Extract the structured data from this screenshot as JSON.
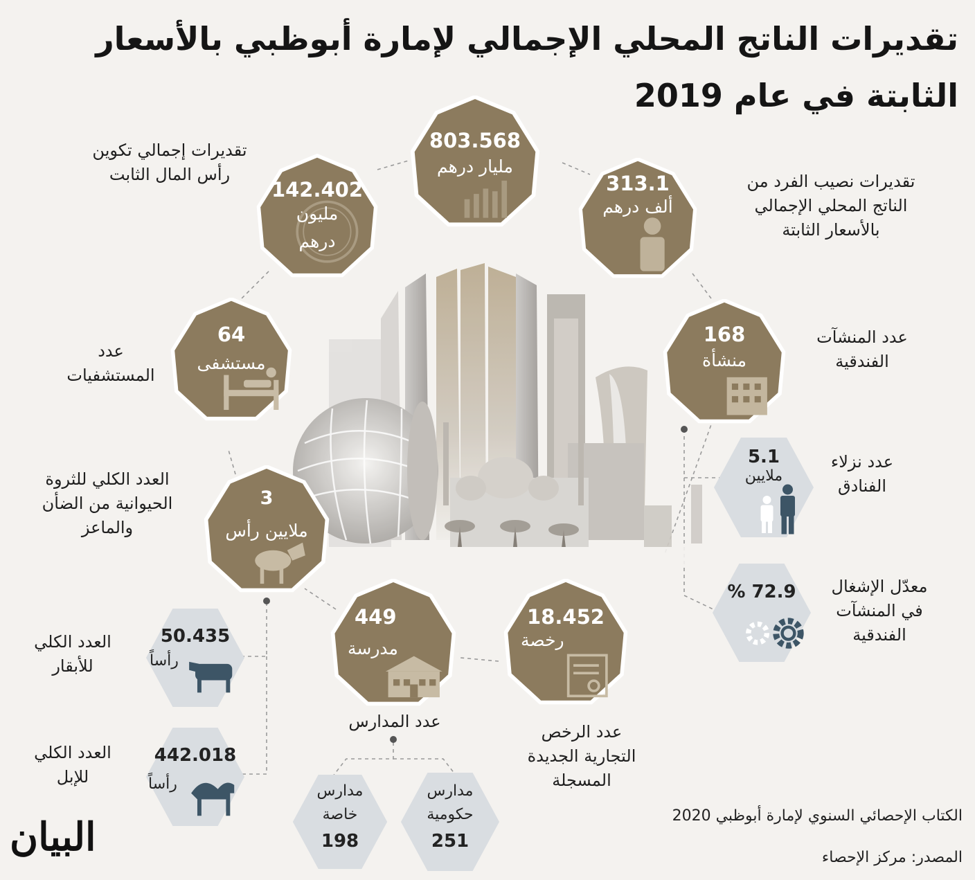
{
  "title": {
    "line1": "تقديرات الناتج المحلي الإجمالي لإمارة أبوظبي بالأسعار",
    "line2": "الثابتة في عام 2019"
  },
  "colors": {
    "gold": "#8c7b5e",
    "gold_border": "#ffffff",
    "gray_hex": "#d9dde1",
    "icon_dark": "#3d5566",
    "accent_line": "#9a9a9a"
  },
  "gdp": {
    "value": "803.568",
    "unit": "مليار درهم",
    "icon": "bar-chart-icon"
  },
  "per_capita": {
    "value": "313.1",
    "unit": "ألف درهم",
    "label": "تقديرات نصيب الفرد من\nالناتج المحلي الإجمالي\nبالأسعار الثابتة",
    "icon": "person-icon"
  },
  "capital": {
    "value": "142.402",
    "unit1": "مليون",
    "unit2": "درهم",
    "label": "تقديرات إجمالي تكوين\nرأس المال الثابت",
    "icon": "coin-icon"
  },
  "hospitals": {
    "value": "64",
    "unit": "مستشفى",
    "label": "عدد\nالمستشفيات",
    "icon": "hospital-bed-icon"
  },
  "hotels": {
    "value": "168",
    "unit": "منشأة",
    "label": "عدد المنشآت\nالفندقية",
    "icon": "hotel-building-icon"
  },
  "guests": {
    "value": "5.1",
    "unit": "ملايين",
    "label": "عدد نزلاء\nالفنادق",
    "icon": "guests-icon"
  },
  "occupancy": {
    "value": "% 72.9",
    "label": "معدّل الإشغال\nفي المنشآت\nالفندقية",
    "icon": "gears-icon"
  },
  "livestock": {
    "value": "3",
    "unit": "ملايين رأس",
    "label": "العدد الكلي للثروة\nالحيوانية من الضأن\nوالماعز",
    "icon": "goat-icon"
  },
  "schools": {
    "value": "449",
    "unit": "مدرسة",
    "label": "عدد المدارس",
    "icon": "school-icon"
  },
  "licenses": {
    "value": "18.452",
    "unit": "رخصة",
    "label": "عدد الرخص\nالتجارية الجديدة\nالمسجلة",
    "icon": "certificate-icon"
  },
  "cattle": {
    "value": "50.435",
    "unit": "رأساً",
    "label": "العدد الكلي\nللأبقار",
    "icon": "cow-icon"
  },
  "camels": {
    "value": "442.018",
    "unit": "رأساً",
    "label": "العدد الكلي\nللإبل",
    "icon": "camel-icon"
  },
  "private_schools": {
    "line1": "مدارس",
    "line2": "خاصة",
    "value": "198"
  },
  "gov_schools": {
    "line1": "مدارس",
    "line2": "حكومية",
    "value": "251"
  },
  "source": {
    "book": "الكتاب الإحصائي السنوي لإمارة أبوظبي 2020",
    "center": "المصدر: مركز الإحصاء"
  },
  "logo": "البيان"
}
